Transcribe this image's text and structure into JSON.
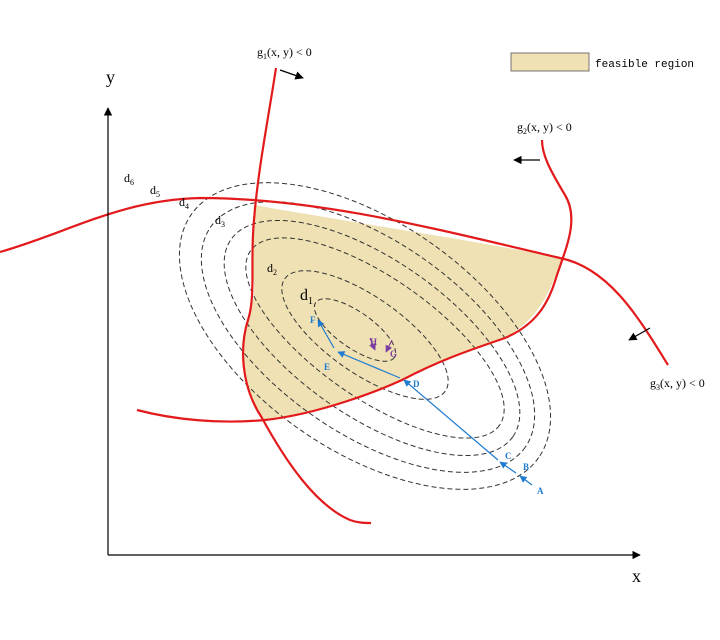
{
  "colors": {
    "feasible_fill": "#f0e1b4",
    "constraint": "#e31a1c",
    "contour": "#333333",
    "path_blue": "#1e7bd0",
    "path_purple": "#7b3fa0",
    "axis": "#000000"
  },
  "axes": {
    "x_label": "x",
    "y_label": "y"
  },
  "legend": {
    "label": "feasible region"
  },
  "constraints": {
    "g1": {
      "name": "g",
      "sub": "1",
      "args": "(x, y) < 0"
    },
    "g2": {
      "name": "g",
      "sub": "2",
      "args": "(x, y) < 0"
    },
    "g3": {
      "name": "g",
      "sub": "3",
      "args": "(x, y) < 0"
    }
  },
  "contours": [
    {
      "name": "d",
      "sub": "1"
    },
    {
      "name": "d",
      "sub": "2"
    },
    {
      "name": "d",
      "sub": "3"
    },
    {
      "name": "d",
      "sub": "4"
    },
    {
      "name": "d",
      "sub": "5"
    },
    {
      "name": "d",
      "sub": "6"
    }
  ],
  "points": {
    "A": "A",
    "B": "B",
    "C": "C",
    "D": "D",
    "E": "E",
    "F": "F",
    "G": "G",
    "H": "H"
  }
}
